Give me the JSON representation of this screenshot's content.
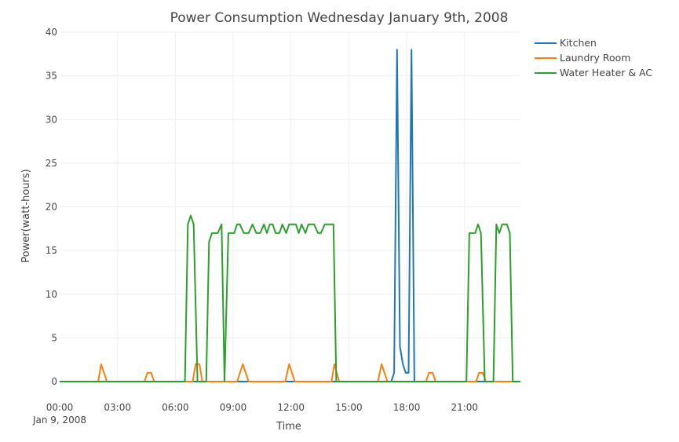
{
  "chart_data": {
    "type": "line",
    "title": "Power Consumption Wednesday January 9th, 2008",
    "xlabel": "Time",
    "ylabel": "Power(watt-hours)",
    "x_unit": "hours since 00:00 Jan 9, 2008",
    "xlim": [
      0,
      23.9
    ],
    "ylim": [
      0,
      40
    ],
    "grid": true,
    "legend_position": "top-right",
    "x_ticks": [
      {
        "value": 0,
        "label": "00:00",
        "sublabel": "Jan 9, 2008"
      },
      {
        "value": 3,
        "label": "03:00"
      },
      {
        "value": 6,
        "label": "06:00"
      },
      {
        "value": 9,
        "label": "09:00"
      },
      {
        "value": 12,
        "label": "12:00"
      },
      {
        "value": 15,
        "label": "15:00"
      },
      {
        "value": 18,
        "label": "18:00"
      },
      {
        "value": 21,
        "label": "21:00"
      }
    ],
    "y_ticks": [
      0,
      5,
      10,
      15,
      20,
      25,
      30,
      35,
      40
    ],
    "series": [
      {
        "name": "Kitchen",
        "color": "#1f77b4",
        "points": [
          [
            0,
            0
          ],
          [
            17.2,
            0
          ],
          [
            17.35,
            1
          ],
          [
            17.5,
            38
          ],
          [
            17.65,
            4
          ],
          [
            17.8,
            2
          ],
          [
            17.95,
            1
          ],
          [
            18.1,
            1
          ],
          [
            18.25,
            38
          ],
          [
            18.4,
            0
          ],
          [
            23.9,
            0
          ]
        ]
      },
      {
        "name": "Laundry Room",
        "color": "#ff7f0e",
        "points": [
          [
            0,
            0
          ],
          [
            2,
            0
          ],
          [
            2.15,
            2
          ],
          [
            2.45,
            0
          ],
          [
            4.4,
            0
          ],
          [
            4.55,
            1
          ],
          [
            4.75,
            1
          ],
          [
            4.9,
            0
          ],
          [
            6.9,
            0
          ],
          [
            7.05,
            2
          ],
          [
            7.25,
            2
          ],
          [
            7.4,
            0
          ],
          [
            9.2,
            0
          ],
          [
            9.5,
            2
          ],
          [
            9.8,
            0
          ],
          [
            11.7,
            0
          ],
          [
            11.9,
            2
          ],
          [
            12.2,
            0
          ],
          [
            14.1,
            0
          ],
          [
            14.25,
            2
          ],
          [
            14.5,
            0
          ],
          [
            16.5,
            0
          ],
          [
            16.7,
            2
          ],
          [
            17,
            0
          ],
          [
            19,
            0
          ],
          [
            19.15,
            1
          ],
          [
            19.35,
            1
          ],
          [
            19.5,
            0
          ],
          [
            21.6,
            0
          ],
          [
            21.75,
            1
          ],
          [
            21.95,
            1
          ],
          [
            22.1,
            0
          ],
          [
            23.9,
            0
          ]
        ]
      },
      {
        "name": "Water Heater & AC",
        "color": "#2ca02c",
        "points": [
          [
            0,
            0
          ],
          [
            6.5,
            0
          ],
          [
            6.65,
            18
          ],
          [
            6.8,
            19
          ],
          [
            6.95,
            18
          ],
          [
            7.15,
            0
          ],
          [
            7.6,
            0
          ],
          [
            7.75,
            16
          ],
          [
            7.9,
            17
          ],
          [
            8.2,
            17
          ],
          [
            8.4,
            18
          ],
          [
            8.55,
            0
          ],
          [
            8.75,
            17
          ],
          [
            9.05,
            17
          ],
          [
            9.2,
            18
          ],
          [
            9.35,
            18
          ],
          [
            9.55,
            17
          ],
          [
            9.8,
            17
          ],
          [
            10,
            18
          ],
          [
            10.2,
            17
          ],
          [
            10.4,
            17
          ],
          [
            10.6,
            18
          ],
          [
            10.75,
            17
          ],
          [
            10.9,
            18
          ],
          [
            11.05,
            18
          ],
          [
            11.2,
            17
          ],
          [
            11.4,
            17
          ],
          [
            11.55,
            18
          ],
          [
            11.75,
            17
          ],
          [
            11.9,
            18
          ],
          [
            12.1,
            18
          ],
          [
            12.25,
            18
          ],
          [
            12.4,
            17
          ],
          [
            12.55,
            18
          ],
          [
            12.75,
            17
          ],
          [
            12.9,
            18
          ],
          [
            13.05,
            18
          ],
          [
            13.2,
            18
          ],
          [
            13.4,
            17
          ],
          [
            13.55,
            17
          ],
          [
            13.75,
            18
          ],
          [
            13.95,
            18
          ],
          [
            14.2,
            18
          ],
          [
            14.35,
            0
          ],
          [
            21.1,
            0
          ],
          [
            21.25,
            17
          ],
          [
            21.55,
            17
          ],
          [
            21.7,
            18
          ],
          [
            21.85,
            17
          ],
          [
            22.05,
            0
          ],
          [
            22.5,
            0
          ],
          [
            22.65,
            18
          ],
          [
            22.8,
            17
          ],
          [
            22.95,
            18
          ],
          [
            23.2,
            18
          ],
          [
            23.35,
            17
          ],
          [
            23.5,
            0
          ],
          [
            23.9,
            0
          ]
        ]
      }
    ]
  }
}
